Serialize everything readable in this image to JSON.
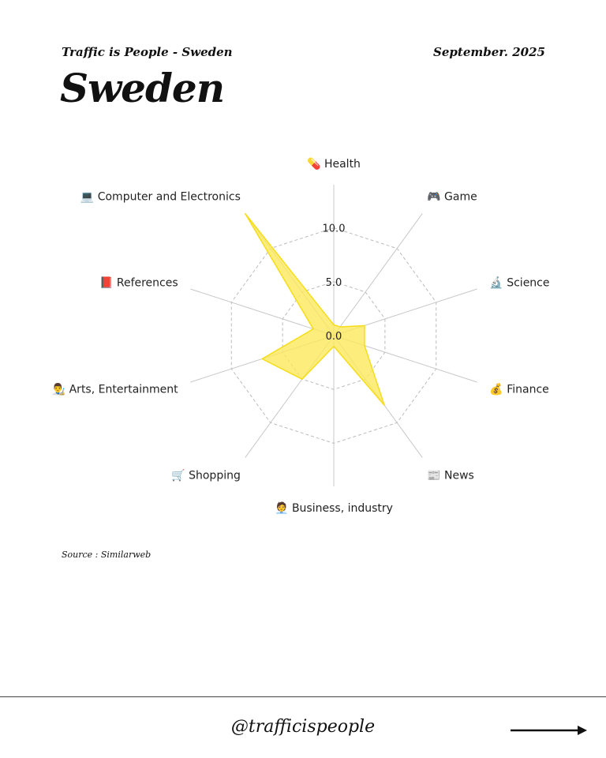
{
  "header": {
    "subtitle": "Traffic is People - Sweden",
    "date": "September. 2025",
    "title": "Sweden"
  },
  "source": "Source : Similarweb",
  "footer": {
    "handle": "@trafficispeople",
    "arrow_icon": "right-arrow-icon"
  },
  "chart_data": {
    "type": "radar",
    "categories": [
      "Health",
      "Game",
      "Science",
      "Finance",
      "News",
      "Business, industry",
      "Shopping",
      "Arts, Entertainment",
      "References",
      "Computer and Electronics"
    ],
    "category_icons": [
      "💊",
      "🎮",
      "🔬",
      "💰",
      "📰",
      "🧑‍💼",
      "🛒",
      "👨‍🎨",
      "📕",
      "💻"
    ],
    "values": [
      1.0,
      1.0,
      3.0,
      3.0,
      8.0,
      1.0,
      5.0,
      7.0,
      2.0,
      14.0
    ],
    "rlim": [
      0,
      14
    ],
    "rticks": [
      0,
      5,
      10
    ],
    "rtick_labels": [
      "0.0",
      "5.0",
      "10.0"
    ],
    "grid": true,
    "fill_color": "#fbe95c",
    "line_color": "#f5dd1a"
  }
}
